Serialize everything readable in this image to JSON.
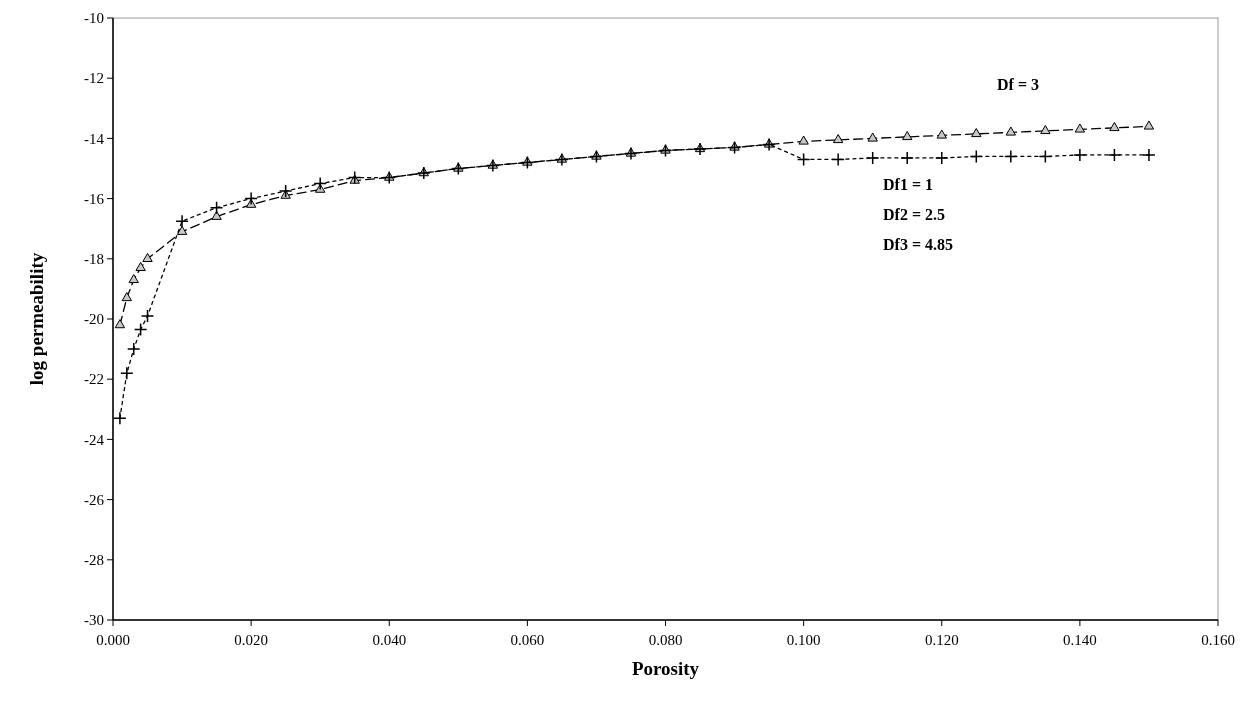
{
  "chart_data": {
    "type": "line",
    "xlabel": "Porosity",
    "ylabel": "log permeability",
    "annotations": [
      "Df = 3",
      "Df1 = 1",
      "Df2 = 2.5",
      "Df3 = 4.85"
    ],
    "series": [
      {
        "color": "#000000",
        "marker": "triangle",
        "line_style": "dashed",
        "x": [
          0.001,
          0.002,
          0.003,
          0.004,
          0.005,
          0.01,
          0.015,
          0.02,
          0.025,
          0.03,
          0.035,
          0.04,
          0.045,
          0.05,
          0.055,
          0.06,
          0.065,
          0.07,
          0.075,
          0.08,
          0.085,
          0.09,
          0.095,
          0.1,
          0.105,
          0.11,
          0.115,
          0.12,
          0.125,
          0.13,
          0.135,
          0.14,
          0.145,
          0.15
        ],
        "values": [
          -20.2,
          -19.3,
          -18.7,
          -18.3,
          -18.0,
          -17.1,
          -16.6,
          -16.2,
          -15.9,
          -15.7,
          -15.4,
          -15.3,
          -15.15,
          -15.0,
          -14.9,
          -14.8,
          -14.7,
          -14.6,
          -14.5,
          -14.4,
          -14.35,
          -14.3,
          -14.2,
          -14.1,
          -14.05,
          -14.0,
          -13.95,
          -13.9,
          -13.85,
          -13.8,
          -13.75,
          -13.7,
          -13.65,
          -13.6
        ]
      },
      {
        "color": "#000000",
        "marker": "cross",
        "line_style": "dotted",
        "x": [
          0.001,
          0.002,
          0.003,
          0.004,
          0.005,
          0.01,
          0.015,
          0.02,
          0.025,
          0.03,
          0.035,
          0.04,
          0.045,
          0.05,
          0.055,
          0.06,
          0.065,
          0.07,
          0.075,
          0.08,
          0.085,
          0.09,
          0.095,
          0.1,
          0.105,
          0.11,
          0.115,
          0.12,
          0.125,
          0.13,
          0.135,
          0.14,
          0.145,
          0.15
        ],
        "values": [
          -23.3,
          -21.8,
          -21.0,
          -20.35,
          -19.9,
          -16.75,
          -16.3,
          -16.0,
          -15.75,
          -15.5,
          -15.3,
          -15.3,
          -15.15,
          -15.0,
          -14.9,
          -14.8,
          -14.7,
          -14.6,
          -14.5,
          -14.4,
          -14.35,
          -14.3,
          -14.2,
          -14.7,
          -14.7,
          -14.65,
          -14.65,
          -14.65,
          -14.6,
          -14.6,
          -14.6,
          -14.55,
          -14.55,
          -14.55
        ]
      }
    ],
    "xlim": [
      0,
      0.16
    ],
    "xticks": [
      {
        "value": 0,
        "label": "0.000"
      },
      {
        "value": 0.02,
        "label": "0.020"
      },
      {
        "value": 0.04,
        "label": "0.040"
      },
      {
        "value": 0.06,
        "label": "0.060"
      },
      {
        "value": 0.08,
        "label": "0.080"
      },
      {
        "value": 0.1,
        "label": "0.100"
      },
      {
        "value": 0.12,
        "label": "0.120"
      },
      {
        "value": 0.14,
        "label": "0.140"
      },
      {
        "value": 0.16,
        "label": "0.160"
      }
    ],
    "ylim": [
      -30,
      -10
    ],
    "yticks": [
      -30,
      -28,
      -26,
      -24,
      -22,
      -20,
      -18,
      -16,
      -14,
      -12,
      -10
    ],
    "grid": false
  }
}
